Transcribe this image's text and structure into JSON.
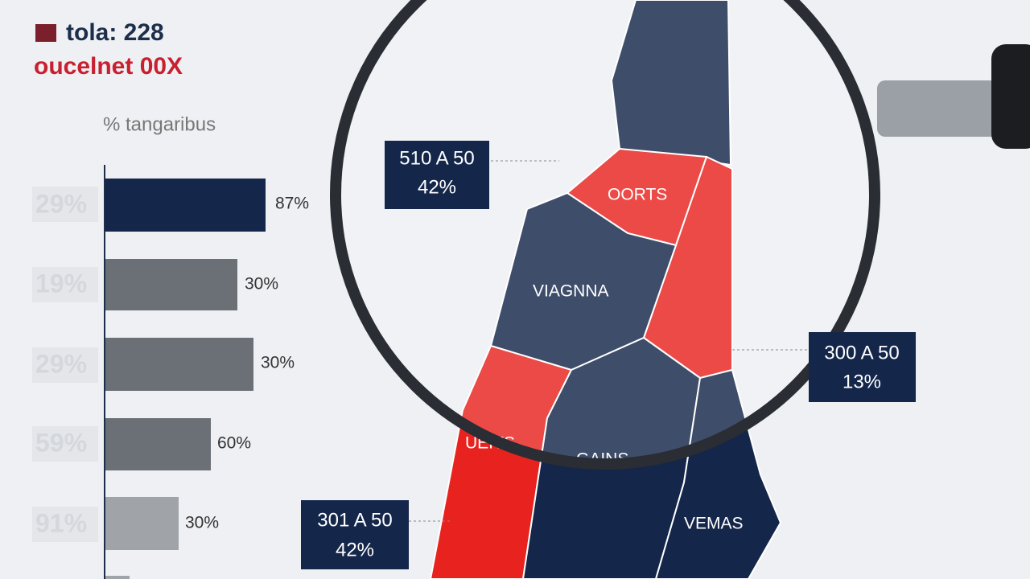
{
  "header": {
    "title": "tola: 228",
    "subtitle": "oucelnet 00X"
  },
  "bar_panel": {
    "label": "% tangaribus",
    "rows": [
      {
        "left": "29%",
        "right": "87%"
      },
      {
        "left": "19%",
        "right": "30%"
      },
      {
        "left": "29%",
        "right": "30%"
      },
      {
        "left": "59%",
        "right": "60%"
      },
      {
        "left": "91%",
        "right": "30%"
      }
    ]
  },
  "map": {
    "regions": [
      "OORTS",
      "VIAGNNA",
      "UEITS",
      "GAINS",
      "VEMAS"
    ]
  },
  "callouts": [
    {
      "line1": "510 A 50",
      "line2": "42%"
    },
    {
      "line1": "300 A 50",
      "line2": "13%"
    },
    {
      "line1": "301 A 50",
      "line2": "42%"
    }
  ]
}
